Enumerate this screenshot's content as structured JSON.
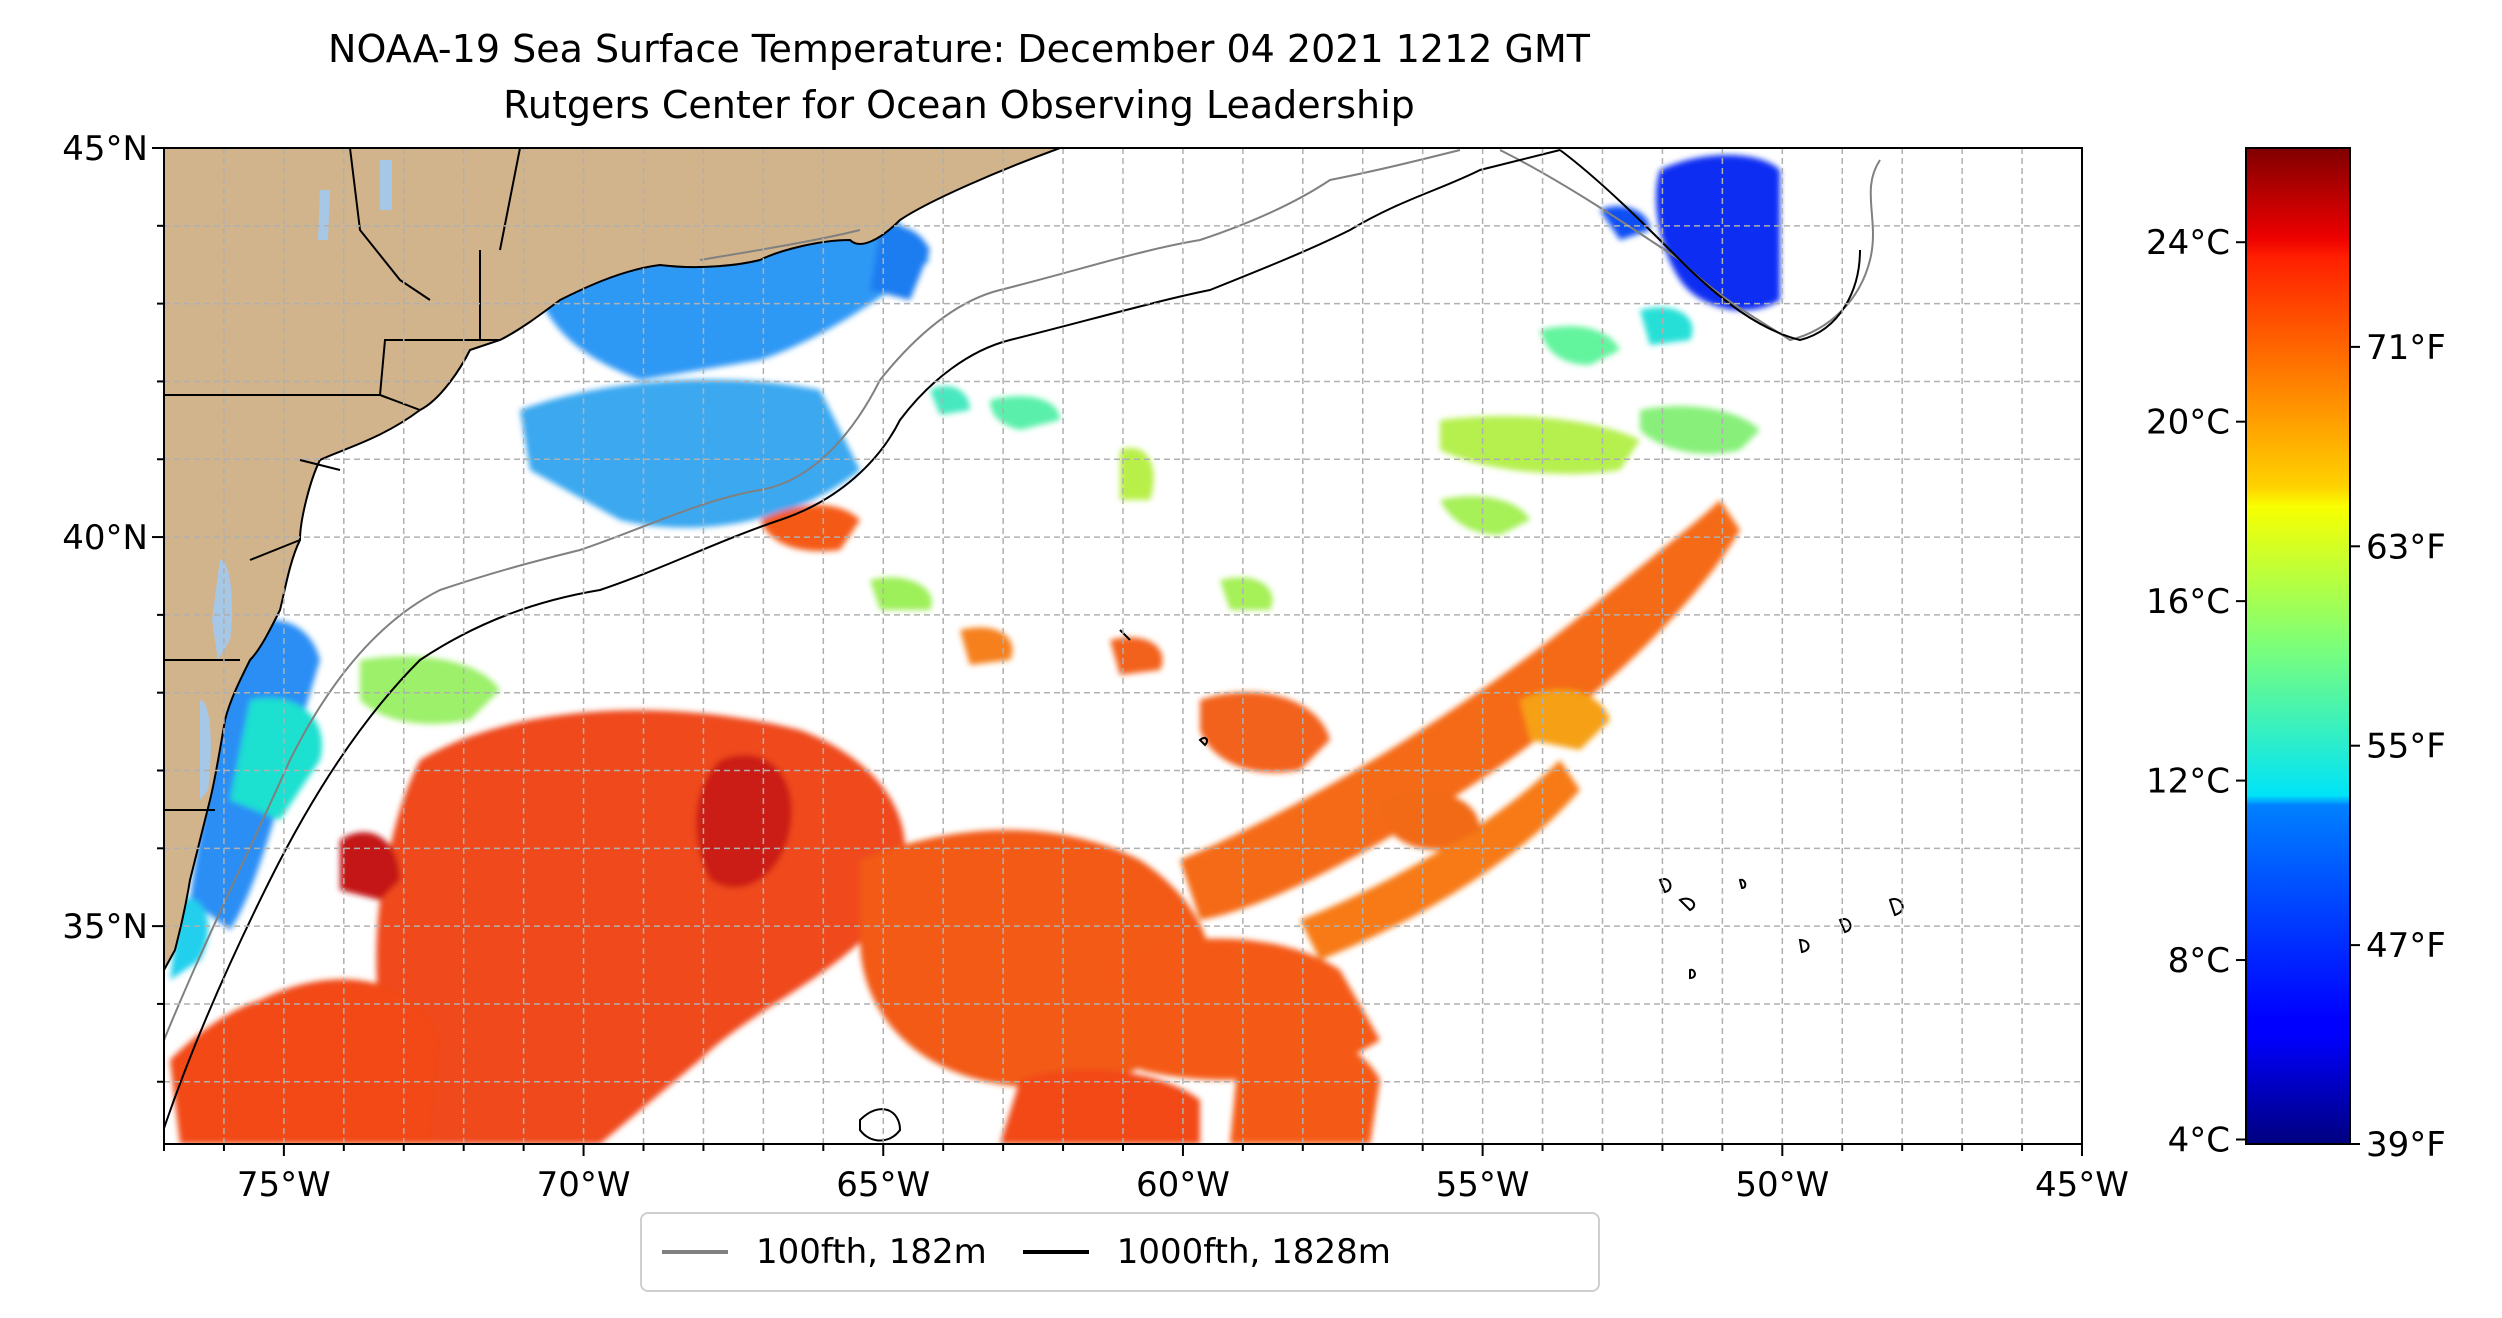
{
  "title": {
    "line1": "NOAA-19 Sea Surface Temperature: December 04 2021 1212 GMT",
    "line2": "Rutgers Center for Ocean Observing Leadership"
  },
  "map": {
    "lon_range": [
      -77,
      -45
    ],
    "lat_range": [
      32.2,
      45
    ],
    "lat_ticks": [
      {
        "value": 45,
        "label": "45°N"
      },
      {
        "value": 40,
        "label": "40°N"
      },
      {
        "value": 35,
        "label": "35°N"
      }
    ],
    "lon_ticks": [
      {
        "value": -75,
        "label": "75°W"
      },
      {
        "value": -70,
        "label": "70°W"
      },
      {
        "value": -65,
        "label": "65°W"
      },
      {
        "value": -60,
        "label": "60°W"
      },
      {
        "value": -55,
        "label": "55°W"
      },
      {
        "value": -50,
        "label": "50°W"
      },
      {
        "value": -45,
        "label": "45°W"
      }
    ],
    "grid": true,
    "land_color": "#d2b48c",
    "water_body_color": "#a7c7e7"
  },
  "legend": {
    "items": [
      {
        "label": "100fth, 182m",
        "color": "#808080"
      },
      {
        "label": "1000fth, 1828m",
        "color": "#000000"
      }
    ]
  },
  "colorbar": {
    "colormap": "jet",
    "celsius_range": [
      3.9,
      26.1
    ],
    "celsius_ticks": [
      {
        "value": 4,
        "label": "4°C"
      },
      {
        "value": 8,
        "label": "8°C"
      },
      {
        "value": 12,
        "label": "12°C"
      },
      {
        "value": 16,
        "label": "16°C"
      },
      {
        "value": 20,
        "label": "20°C"
      },
      {
        "value": 24,
        "label": "24°C"
      }
    ],
    "fahrenheit_ticks": [
      {
        "value": 39,
        "label": "39°F"
      },
      {
        "value": 47,
        "label": "47°F"
      },
      {
        "value": 55,
        "label": "55°F"
      },
      {
        "value": 63,
        "label": "63°F"
      },
      {
        "value": 71,
        "label": "71°F"
      }
    ]
  }
}
